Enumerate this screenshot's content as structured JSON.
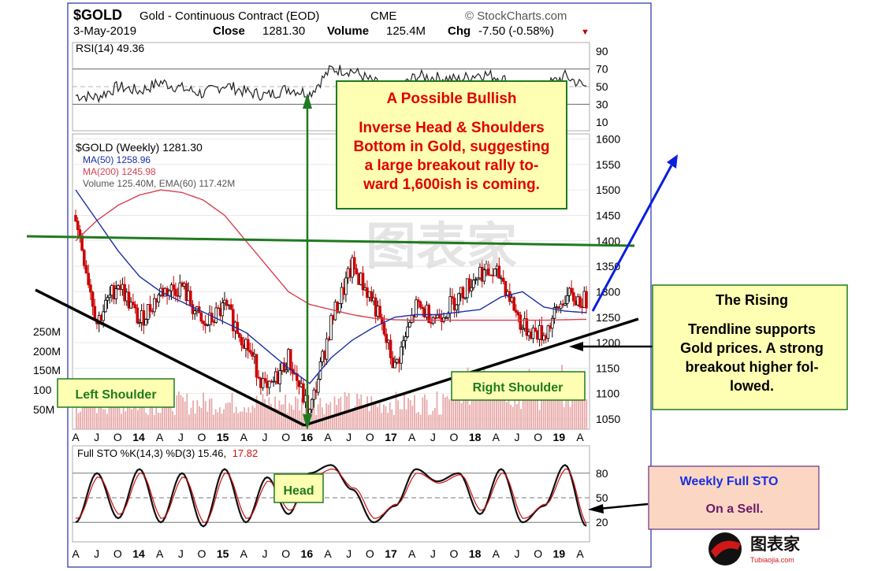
{
  "header": {
    "symbol": "$GOLD",
    "name": "Gold - Continuous Contract (EOD)",
    "exchange": "CME",
    "source": "© StockCharts.com",
    "date": "3-May-2019",
    "close_label": "Close",
    "close_value": "1281.30",
    "volume_label": "Volume",
    "volume_value": "125.4M",
    "chg_label": "Chg",
    "chg_value": "-7.50 (-0.58%)",
    "chg_marker": "▼"
  },
  "rsi": {
    "legend": "RSI(14) 49.36",
    "ticks": [
      "90",
      "70",
      "50",
      "30",
      "10"
    ]
  },
  "price": {
    "legend_symbol": "$GOLD (Weekly) 1281.30",
    "legend_ma50": "MA(50) 1258.96",
    "legend_ma200": "MA(200) 1245.98",
    "legend_volume": "Volume 125.40M, EMA(60) 117.42M",
    "ticks": [
      "1600",
      "1550",
      "1500",
      "1450",
      "1400",
      "1350",
      "1300",
      "1250",
      "1200",
      "1150",
      "1100",
      "1050"
    ],
    "volume_ticks": [
      "250M",
      "200M",
      "150M",
      "100",
      "50M"
    ]
  },
  "sto": {
    "legend_prefix": "Full STO %K(14,3) %D(3) 15.46,",
    "legend_d": "17.82",
    "ticks": [
      "80",
      "50",
      "20"
    ]
  },
  "x_axis": [
    "A",
    "J",
    "O",
    "14",
    "A",
    "J",
    "O",
    "15",
    "A",
    "J",
    "O",
    "16",
    "A",
    "J",
    "O",
    "17",
    "A",
    "J",
    "O",
    "18",
    "A",
    "J",
    "O",
    "19",
    "A"
  ],
  "annotations": {
    "bullish_title": "A Possible Bullish",
    "bullish_lines": [
      "Inverse Head & Shoulders",
      "Bottom in Gold, suggesting",
      "a large breakout rally to-",
      "ward 1,600ish is coming."
    ],
    "left_shoulder": "Left Shoulder",
    "head": "Head",
    "right_shoulder": "Right Shoulder",
    "rising_title": "The Rising",
    "rising_lines": [
      "Trendline supports",
      "Gold prices. A strong",
      "breakout higher fol-",
      "lowed."
    ],
    "sto_title": "Weekly Full STO",
    "sto_sub": "On a Sell."
  },
  "watermark": {
    "center": "图表家",
    "logo_text": "图表家",
    "logo_sub": "Tubiaojia.com"
  },
  "colors": {
    "price_up": "#000000",
    "price_down": "#cc0000",
    "ma50": "#1a2ea8",
    "ma200": "#d84050",
    "volume": "#e8a8a8",
    "neckline": "#1f7a1f",
    "arrow_blue": "#0a1ee0",
    "note_bg": "#ffffb3",
    "sto_box_bg": "#fbd7c3"
  },
  "chart_data": {
    "type": "line",
    "title": "$GOLD Gold - Continuous Contract (EOD) CME",
    "series": [
      {
        "name": "$GOLD (Weekly)",
        "x": [
          "2013-04",
          "2013-07",
          "2013-10",
          "2014-01",
          "2014-04",
          "2014-07",
          "2014-10",
          "2015-01",
          "2015-04",
          "2015-07",
          "2015-10",
          "2016-01",
          "2016-04",
          "2016-07",
          "2016-10",
          "2017-01",
          "2017-04",
          "2017-07",
          "2017-10",
          "2018-01",
          "2018-04",
          "2018-07",
          "2018-10",
          "2019-01",
          "2019-04"
        ],
        "values": [
          1450,
          1240,
          1320,
          1240,
          1300,
          1310,
          1230,
          1270,
          1200,
          1100,
          1170,
          1060,
          1240,
          1350,
          1280,
          1150,
          1270,
          1250,
          1290,
          1340,
          1330,
          1230,
          1215,
          1290,
          1281.3
        ]
      },
      {
        "name": "MA(50)",
        "values": [
          1500,
          1440,
          1380,
          1330,
          1300,
          1280,
          1260,
          1240,
          1220,
          1185,
          1150,
          1120,
          1170,
          1205,
          1230,
          1250,
          1255,
          1255,
          1260,
          1265,
          1290,
          1300,
          1270,
          1262,
          1258.96
        ]
      },
      {
        "name": "MA(200)",
        "values": [
          1400,
          1440,
          1470,
          1490,
          1500,
          1495,
          1480,
          1450,
          1400,
          1350,
          1300,
          1275,
          1265,
          1255,
          1248,
          1245,
          1244,
          1244,
          1244,
          1244,
          1244,
          1244,
          1244,
          1245,
          1245.98
        ]
      },
      {
        "name": "RSI(14)",
        "values": [
          40,
          38,
          50,
          45,
          55,
          48,
          42,
          52,
          44,
          40,
          48,
          42,
          70,
          68,
          55,
          45,
          62,
          60,
          58,
          65,
          60,
          45,
          50,
          62,
          49.36
        ]
      },
      {
        "name": "Full STO %K(14,3)",
        "values": [
          20,
          80,
          25,
          85,
          20,
          80,
          15,
          85,
          20,
          75,
          30,
          80,
          90,
          60,
          20,
          40,
          85,
          70,
          80,
          30,
          85,
          20,
          40,
          90,
          15.46
        ]
      },
      {
        "name": "%D(3)",
        "values": [
          25,
          75,
          30,
          80,
          25,
          75,
          20,
          80,
          25,
          70,
          35,
          75,
          85,
          62,
          25,
          42,
          80,
          68,
          78,
          35,
          80,
          25,
          42,
          85,
          17.82
        ]
      }
    ],
    "ylim_price": [
      1030,
      1610
    ],
    "ylim_rsi": [
      0,
      100
    ],
    "ylim_sto": [
      0,
      100
    ]
  }
}
